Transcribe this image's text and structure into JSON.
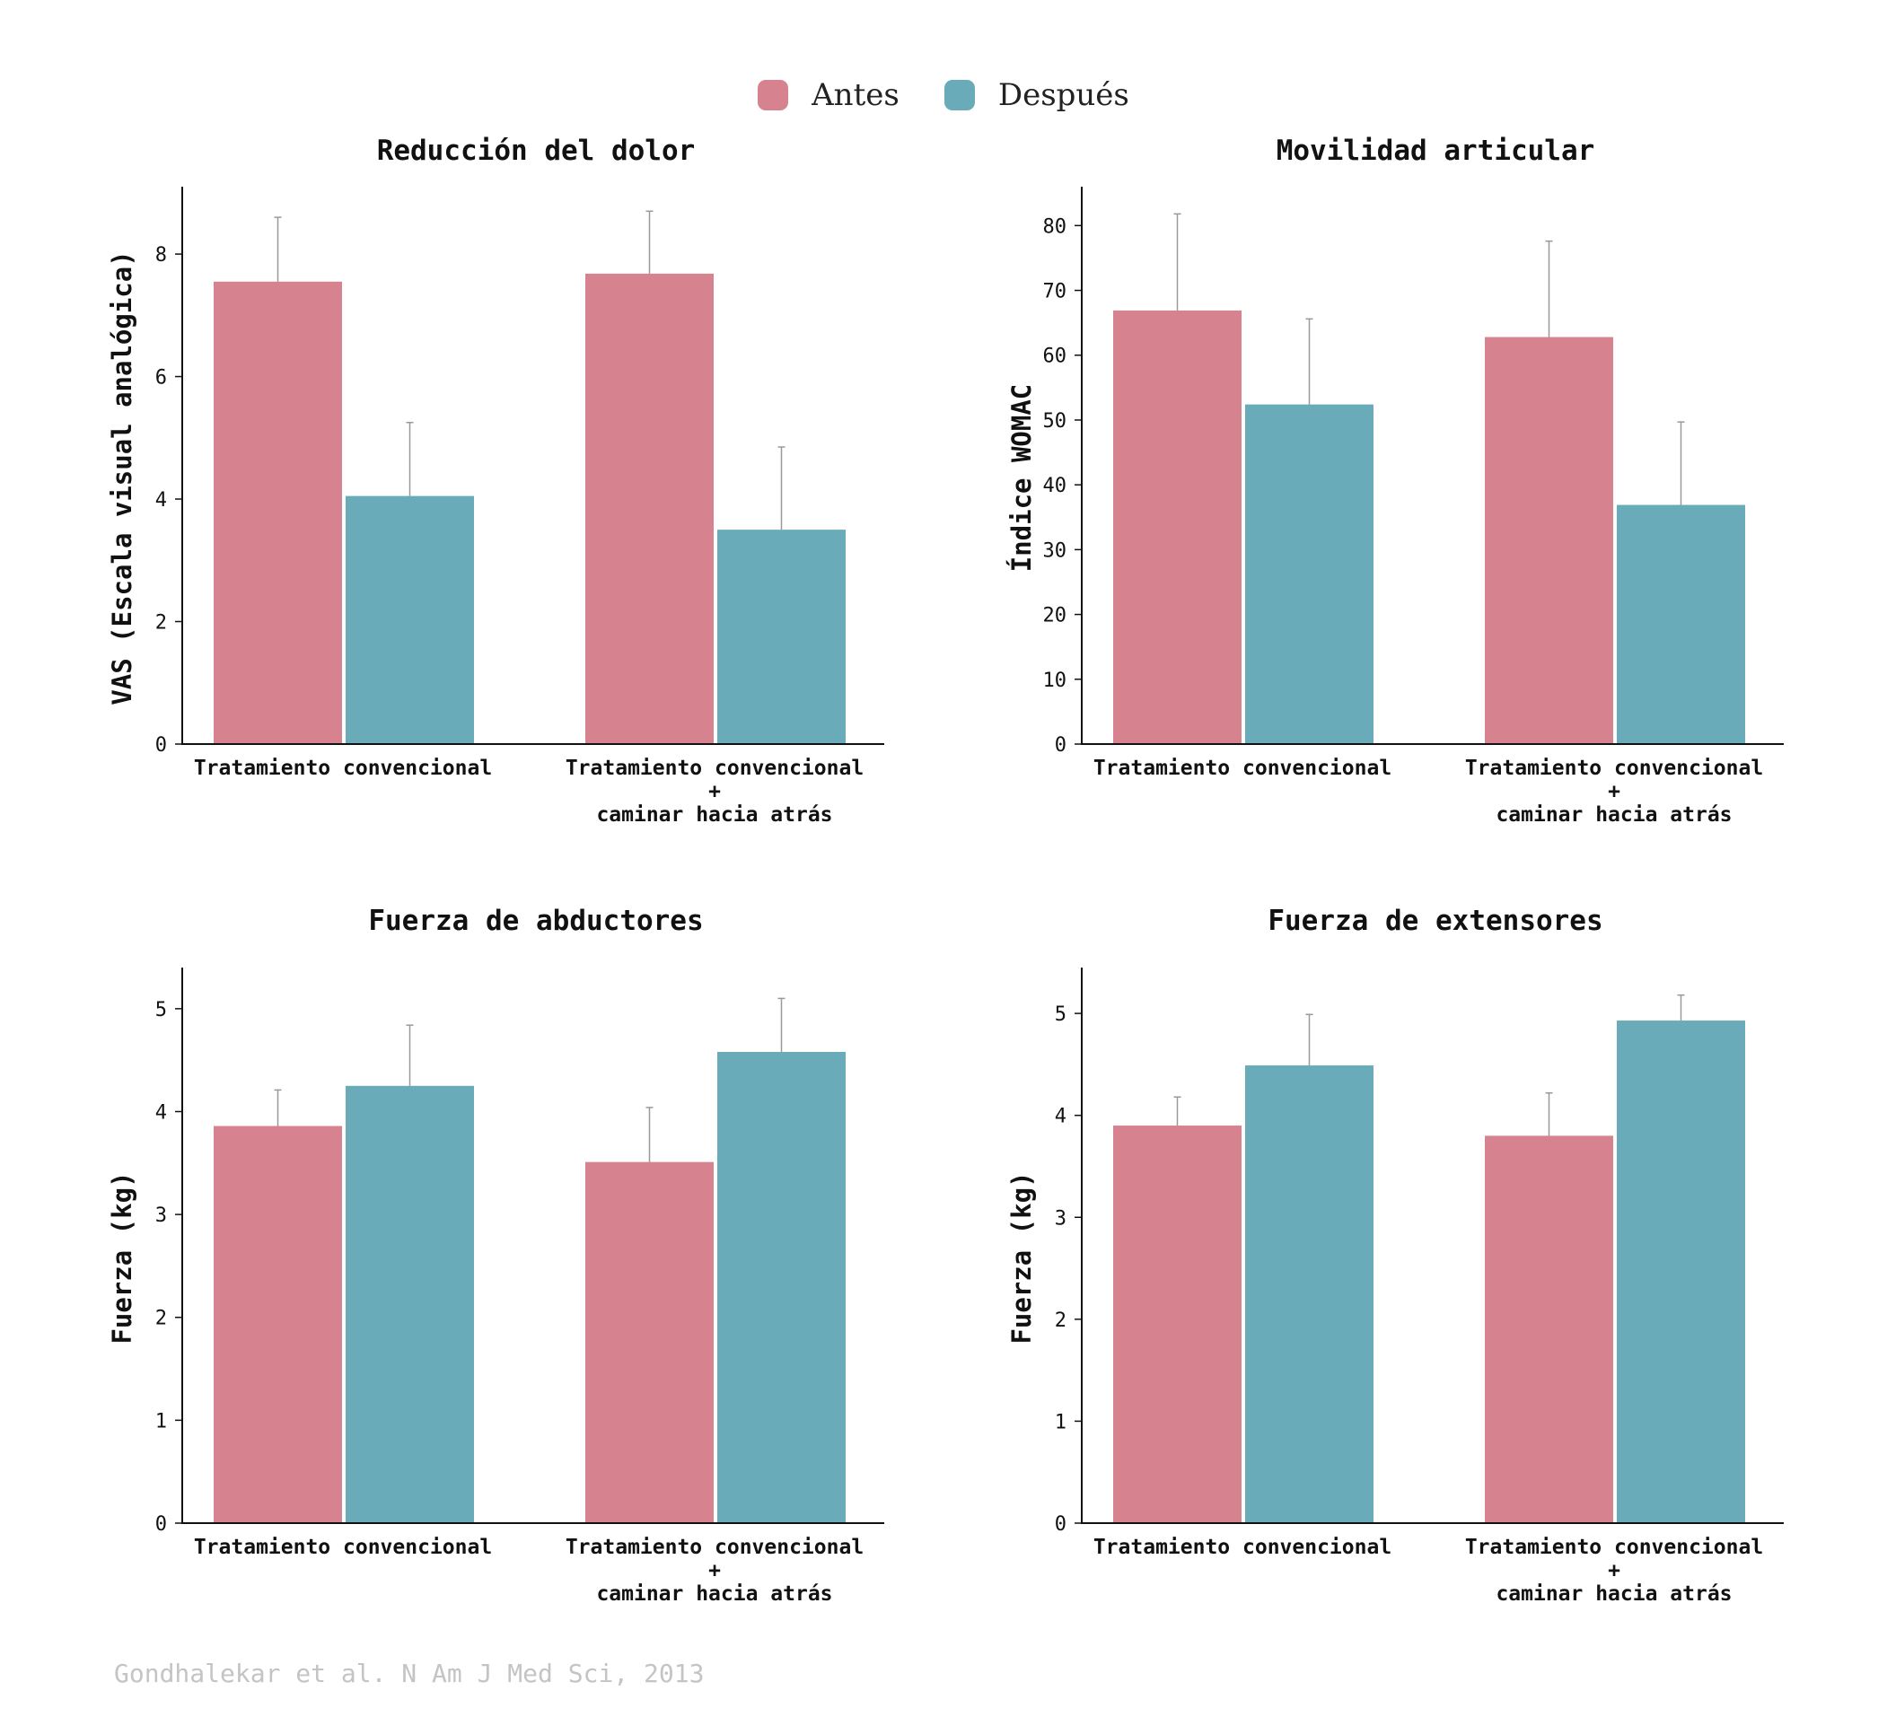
{
  "legend": {
    "items": [
      {
        "label": "Antes",
        "color": "#d6838f"
      },
      {
        "label": "Después",
        "color": "#69abb8"
      }
    ]
  },
  "source": "Gondhalekar et al. N Am J Med Sci, 2013",
  "chart_data": [
    {
      "type": "bar",
      "title": "Reducción del dolor",
      "ylabel": "VAS (Escala visual analógica)",
      "categories": [
        [
          "Tratamiento convencional"
        ],
        [
          "Tratamiento convencional",
          "+",
          "caminar hacia atrás"
        ]
      ],
      "ylim": [
        0,
        9.1
      ],
      "yticks": [
        0,
        2,
        4,
        6,
        8
      ],
      "series": [
        {
          "name": "Antes",
          "values": [
            7.55,
            7.68
          ],
          "errors": [
            1.05,
            1.02
          ]
        },
        {
          "name": "Después",
          "values": [
            4.05,
            3.5
          ],
          "errors": [
            1.2,
            1.35
          ]
        }
      ]
    },
    {
      "type": "bar",
      "title": "Movilidad articular",
      "ylabel": "Índice WOMAC",
      "categories": [
        [
          "Tratamiento convencional"
        ],
        [
          "Tratamiento convencional",
          "+",
          "caminar hacia atrás"
        ]
      ],
      "ylim": [
        0,
        86
      ],
      "yticks": [
        0,
        10,
        20,
        30,
        40,
        50,
        60,
        70,
        80
      ],
      "series": [
        {
          "name": "Antes",
          "values": [
            66.9,
            62.8
          ],
          "errors": [
            14.9,
            14.8
          ]
        },
        {
          "name": "Después",
          "values": [
            52.4,
            36.9
          ],
          "errors": [
            13.2,
            12.8
          ]
        }
      ]
    },
    {
      "type": "bar",
      "title": "Fuerza de abductores",
      "ylabel": "Fuerza (kg)",
      "categories": [
        [
          "Tratamiento convencional"
        ],
        [
          "Tratamiento convencional",
          "+",
          "caminar hacia atrás"
        ]
      ],
      "ylim": [
        0,
        5.4
      ],
      "yticks": [
        0,
        1,
        2,
        3,
        4,
        5
      ],
      "series": [
        {
          "name": "Antes",
          "values": [
            3.86,
            3.51
          ],
          "errors": [
            0.35,
            0.53
          ]
        },
        {
          "name": "Después",
          "values": [
            4.25,
            4.58
          ],
          "errors": [
            0.59,
            0.52
          ]
        }
      ]
    },
    {
      "type": "bar",
      "title": "Fuerza de extensores",
      "ylabel": "Fuerza (kg)",
      "categories": [
        [
          "Tratamiento convencional"
        ],
        [
          "Tratamiento convencional",
          "+",
          "caminar hacia atrás"
        ]
      ],
      "ylim": [
        0,
        5.45
      ],
      "yticks": [
        0,
        1,
        2,
        3,
        4,
        5
      ],
      "series": [
        {
          "name": "Antes",
          "values": [
            3.9,
            3.8
          ],
          "errors": [
            0.28,
            0.42
          ]
        },
        {
          "name": "Después",
          "values": [
            4.49,
            4.93
          ],
          "errors": [
            0.5,
            0.25
          ]
        }
      ]
    }
  ]
}
